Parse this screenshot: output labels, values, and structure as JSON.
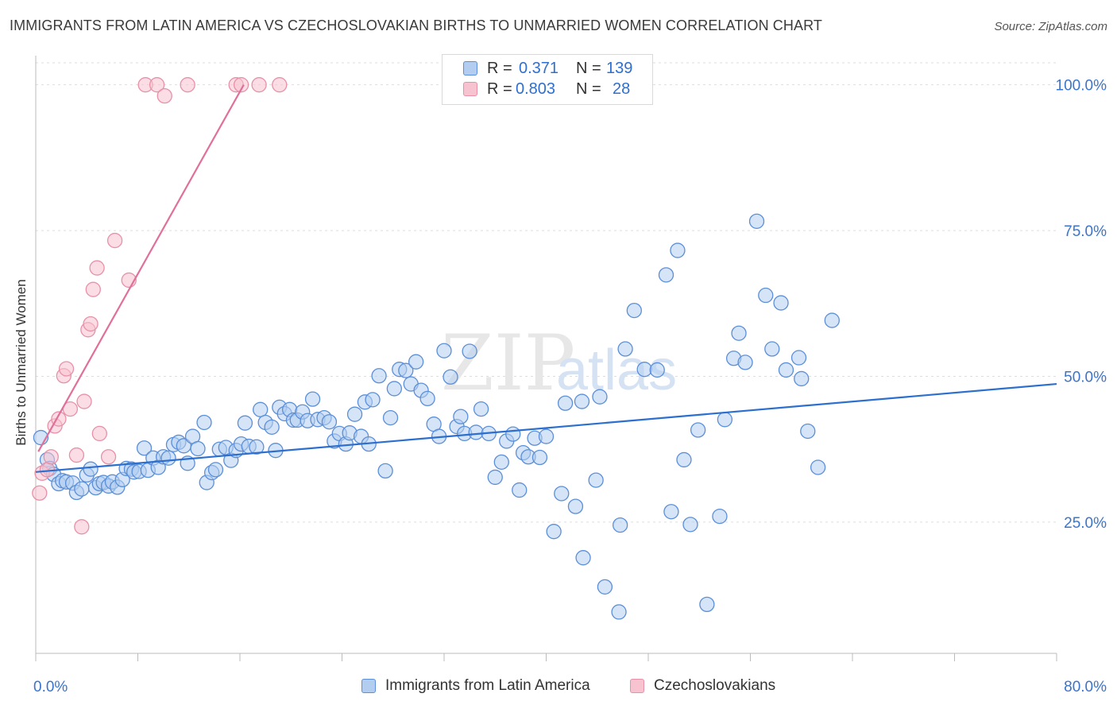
{
  "title": "IMMIGRANTS FROM LATIN AMERICA VS CZECHOSLOVAKIAN BIRTHS TO UNMARRIED WOMEN CORRELATION CHART",
  "source": "Source: ZipAtlas.com",
  "watermark": {
    "zip": "ZIP",
    "atlas": "atlas"
  },
  "legend": {
    "rows": [
      {
        "r_label": "R =",
        "r_value": "0.371",
        "n_label": "N =",
        "n_value": "139"
      },
      {
        "r_label": "R =",
        "r_value": "0.803",
        "n_label": "N =",
        "n_value": "28"
      }
    ]
  },
  "bottom_legend": [
    {
      "label": "Immigrants from Latin America"
    },
    {
      "label": "Czechoslovakians"
    }
  ],
  "colors": {
    "blue_fill": "#b3cdf0",
    "blue_stroke": "#5b8fd8",
    "blue_line": "#2c6fcf",
    "pink_fill": "#f8c3d0",
    "pink_stroke": "#e890a8",
    "pink_line": "#e0709a",
    "tick_label": "#3a74cc",
    "grid": "#dddddd"
  },
  "chart_data": {
    "type": "scatter",
    "title": "IMMIGRANTS FROM LATIN AMERICA VS CZECHOSLOVAKIAN BIRTHS TO UNMARRIED WOMEN CORRELATION CHART",
    "xlabel": "",
    "ylabel": "Births to Unmarried Women",
    "xlim": [
      0,
      80
    ],
    "ylim": [
      2.5,
      105
    ],
    "x_tick_labels": [
      "0.0%",
      "80.0%"
    ],
    "y_ticks": [
      25,
      50,
      75,
      100
    ],
    "y_tick_labels": [
      "25.0%",
      "50.0%",
      "75.0%",
      "100.0%"
    ],
    "grid": "horizontal dashed",
    "legend_position": "top-center",
    "series": [
      {
        "name": "Immigrants from Latin America",
        "color": "#5b8fd8",
        "trend": {
          "x": [
            0,
            80
          ],
          "y": [
            33.6,
            48.7
          ]
        },
        "points": [
          [
            0.4,
            39.5
          ],
          [
            0.9,
            35.7
          ],
          [
            1.1,
            34.2
          ],
          [
            1.4,
            33.2
          ],
          [
            1.8,
            31.6
          ],
          [
            2.1,
            32.1
          ],
          [
            2.4,
            31.9
          ],
          [
            2.9,
            31.7
          ],
          [
            3.2,
            30.1
          ],
          [
            3.6,
            30.7
          ],
          [
            4.0,
            33.1
          ],
          [
            4.3,
            34.1
          ],
          [
            4.7,
            30.9
          ],
          [
            5.0,
            31.6
          ],
          [
            5.3,
            31.8
          ],
          [
            5.7,
            31.2
          ],
          [
            6.0,
            31.9
          ],
          [
            6.4,
            31.0
          ],
          [
            6.8,
            32.3
          ],
          [
            7.1,
            34.2
          ],
          [
            7.5,
            34.1
          ],
          [
            7.7,
            33.6
          ],
          [
            8.1,
            33.7
          ],
          [
            8.5,
            37.7
          ],
          [
            8.8,
            33.9
          ],
          [
            9.2,
            36.0
          ],
          [
            9.6,
            34.4
          ],
          [
            10.0,
            36.2
          ],
          [
            10.4,
            36.0
          ],
          [
            10.8,
            38.3
          ],
          [
            11.2,
            38.7
          ],
          [
            11.6,
            38.1
          ],
          [
            11.9,
            35.1
          ],
          [
            12.3,
            39.7
          ],
          [
            12.7,
            37.6
          ],
          [
            13.2,
            42.1
          ],
          [
            13.4,
            31.8
          ],
          [
            13.8,
            33.5
          ],
          [
            14.1,
            34.0
          ],
          [
            14.4,
            37.5
          ],
          [
            14.9,
            37.8
          ],
          [
            15.3,
            35.6
          ],
          [
            15.7,
            37.3
          ],
          [
            16.1,
            38.4
          ],
          [
            16.4,
            42.0
          ],
          [
            16.7,
            38.0
          ],
          [
            17.3,
            37.9
          ],
          [
            17.6,
            44.3
          ],
          [
            18.0,
            42.1
          ],
          [
            18.5,
            41.3
          ],
          [
            18.8,
            37.3
          ],
          [
            19.1,
            44.7
          ],
          [
            19.5,
            43.6
          ],
          [
            19.9,
            44.3
          ],
          [
            20.2,
            42.5
          ],
          [
            20.5,
            42.5
          ],
          [
            20.9,
            43.9
          ],
          [
            21.3,
            42.4
          ],
          [
            21.7,
            46.1
          ],
          [
            22.1,
            42.6
          ],
          [
            22.6,
            42.9
          ],
          [
            23.0,
            42.2
          ],
          [
            23.4,
            38.9
          ],
          [
            23.8,
            40.2
          ],
          [
            24.3,
            38.4
          ],
          [
            24.6,
            40.3
          ],
          [
            25.0,
            43.5
          ],
          [
            25.5,
            39.7
          ],
          [
            25.8,
            45.6
          ],
          [
            26.1,
            38.4
          ],
          [
            26.4,
            46.0
          ],
          [
            26.9,
            50.1
          ],
          [
            27.4,
            33.8
          ],
          [
            27.8,
            42.9
          ],
          [
            28.1,
            47.9
          ],
          [
            28.5,
            51.2
          ],
          [
            29.0,
            51.0
          ],
          [
            29.4,
            48.7
          ],
          [
            29.8,
            52.5
          ],
          [
            30.2,
            47.6
          ],
          [
            30.7,
            46.2
          ],
          [
            31.2,
            41.8
          ],
          [
            31.6,
            39.7
          ],
          [
            32.0,
            54.4
          ],
          [
            32.5,
            49.9
          ],
          [
            33.0,
            41.4
          ],
          [
            33.3,
            43.1
          ],
          [
            33.6,
            40.2
          ],
          [
            34.0,
            54.3
          ],
          [
            34.5,
            40.4
          ],
          [
            34.9,
            44.4
          ],
          [
            35.5,
            40.2
          ],
          [
            36.0,
            32.7
          ],
          [
            36.5,
            35.3
          ],
          [
            36.9,
            38.9
          ],
          [
            37.4,
            40.1
          ],
          [
            37.9,
            30.5
          ],
          [
            38.2,
            36.9
          ],
          [
            38.6,
            36.2
          ],
          [
            39.1,
            39.4
          ],
          [
            39.5,
            36.1
          ],
          [
            40.0,
            39.7
          ],
          [
            40.6,
            23.4
          ],
          [
            41.2,
            29.9
          ],
          [
            41.5,
            45.4
          ],
          [
            42.3,
            27.7
          ],
          [
            42.8,
            45.7
          ],
          [
            42.9,
            18.9
          ],
          [
            43.9,
            32.2
          ],
          [
            44.2,
            46.5
          ],
          [
            44.6,
            13.9
          ],
          [
            45.7,
            9.6
          ],
          [
            45.8,
            24.5
          ],
          [
            46.2,
            54.7
          ],
          [
            46.9,
            61.3
          ],
          [
            47.7,
            51.2
          ],
          [
            48.7,
            51.1
          ],
          [
            49.4,
            67.4
          ],
          [
            49.8,
            26.8
          ],
          [
            50.3,
            71.6
          ],
          [
            50.8,
            35.7
          ],
          [
            51.3,
            24.6
          ],
          [
            51.9,
            40.8
          ],
          [
            52.6,
            10.9
          ],
          [
            53.6,
            26.0
          ],
          [
            54.0,
            42.6
          ],
          [
            54.7,
            53.1
          ],
          [
            55.1,
            57.4
          ],
          [
            55.6,
            52.4
          ],
          [
            56.5,
            76.6
          ],
          [
            57.2,
            63.9
          ],
          [
            57.7,
            54.7
          ],
          [
            58.4,
            62.6
          ],
          [
            58.8,
            51.1
          ],
          [
            59.8,
            53.2
          ],
          [
            60.0,
            49.6
          ],
          [
            60.5,
            40.6
          ],
          [
            61.3,
            34.4
          ],
          [
            62.4,
            59.6
          ]
        ]
      },
      {
        "name": "Czechoslovakians",
        "color": "#e890a8",
        "trend": {
          "x": [
            0.2,
            16.3
          ],
          "y": [
            37.1,
            100.0
          ]
        },
        "points": [
          [
            0.3,
            30.0
          ],
          [
            0.5,
            33.4
          ],
          [
            0.9,
            34.0
          ],
          [
            1.2,
            36.2
          ],
          [
            1.5,
            41.5
          ],
          [
            1.8,
            42.7
          ],
          [
            2.2,
            50.1
          ],
          [
            2.4,
            51.3
          ],
          [
            2.7,
            44.4
          ],
          [
            3.2,
            36.5
          ],
          [
            3.6,
            24.2
          ],
          [
            3.8,
            45.7
          ],
          [
            4.1,
            58.0
          ],
          [
            4.3,
            59.0
          ],
          [
            4.5,
            64.9
          ],
          [
            4.8,
            68.6
          ],
          [
            5.0,
            40.2
          ],
          [
            5.7,
            36.2
          ],
          [
            6.2,
            73.3
          ],
          [
            7.3,
            66.5
          ],
          [
            8.6,
            100.0
          ],
          [
            9.5,
            100.0
          ],
          [
            10.1,
            98.1
          ],
          [
            11.9,
            100.0
          ],
          [
            15.7,
            100.0
          ],
          [
            16.1,
            100.0
          ],
          [
            17.5,
            100.0
          ],
          [
            19.1,
            100.0
          ]
        ]
      }
    ]
  }
}
